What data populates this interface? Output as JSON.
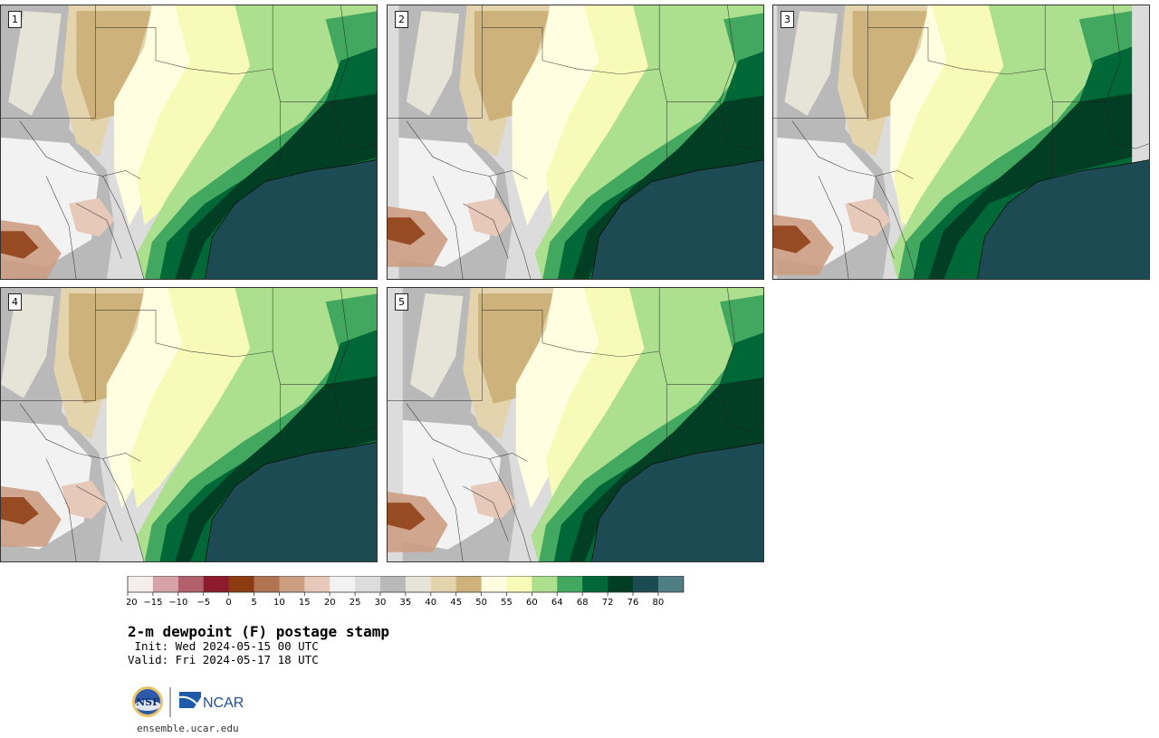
{
  "panels": [
    {
      "label": "1",
      "variant": 0
    },
    {
      "label": "2",
      "variant": 1
    },
    {
      "label": "3",
      "variant": 2
    },
    {
      "label": "4",
      "variant": 3
    },
    {
      "label": "5",
      "variant": 4
    }
  ],
  "colorbar": {
    "colors": [
      "#f6eeec",
      "#d7a3a8",
      "#b1606c",
      "#8c1b2c",
      "#8c3b10",
      "#b07452",
      "#cc9f83",
      "#e6c9b9",
      "#f2f2f2",
      "#dcdcdc",
      "#b9b9b9",
      "#e6e4d7",
      "#e3d4ad",
      "#cdb27c",
      "#fffee0",
      "#f7fbb7",
      "#acdf8e",
      "#43a85f",
      "#006837",
      "#013e23",
      "#1d4b53",
      "#4f7e85"
    ],
    "tick_labels": [
      "−20",
      "−15",
      "−10",
      "−5",
      "0",
      "5",
      "10",
      "15",
      "20",
      "25",
      "30",
      "35",
      "40",
      "45",
      "50",
      "55",
      "60",
      "64",
      "68",
      "72",
      "76",
      "80"
    ]
  },
  "title": "2-m dewpoint (F) postage stamp",
  "init": " Init: Wed 2024-05-15 00 UTC",
  "valid": "Valid: Fri 2024-05-17 18 UTC",
  "logos": {
    "nsf": "NSF",
    "ncar": "NCAR"
  },
  "site": "ensemble.ucar.edu"
}
